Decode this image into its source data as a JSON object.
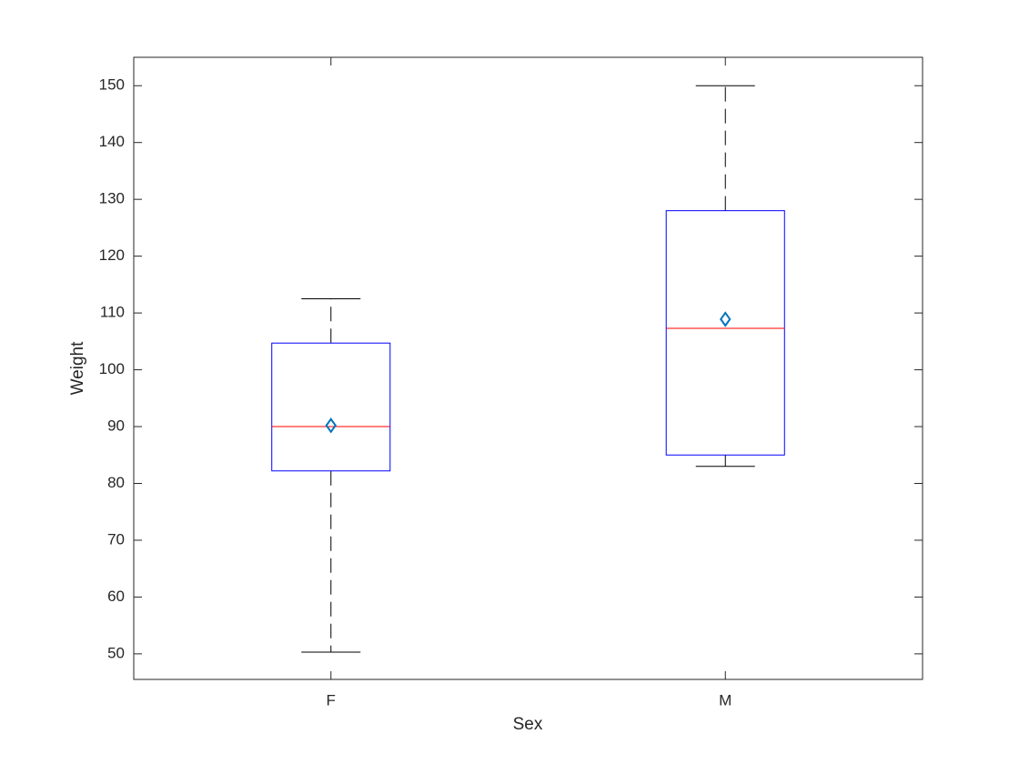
{
  "chart_data": {
    "type": "box",
    "xlabel": "Sex",
    "ylabel": "Weight",
    "categories": [
      "F",
      "M"
    ],
    "whisker_low": [
      50.3,
      83
    ],
    "q1": [
      82.2,
      85
    ],
    "median": [
      90,
      107.3
    ],
    "q3": [
      104.7,
      128
    ],
    "whisker_high": [
      112.5,
      150
    ],
    "mean": [
      90.2,
      108.9
    ],
    "box_color": "#0000ff",
    "median_color": "#ff0000",
    "whisker_color": "#000000",
    "mean_color": "#0072bd",
    "ylim": [
      45.5,
      155
    ],
    "yticks": [
      50,
      60,
      70,
      80,
      90,
      100,
      110,
      120,
      130,
      140,
      150
    ]
  }
}
